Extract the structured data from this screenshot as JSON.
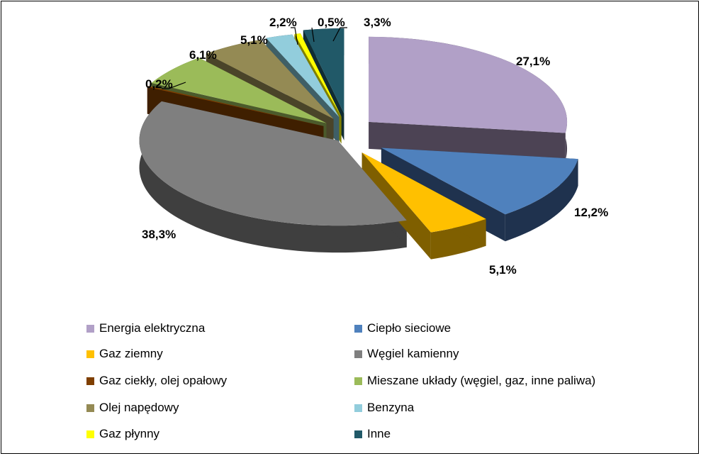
{
  "chart_data": {
    "type": "pie",
    "style": "3d-exploded",
    "title": "",
    "legend_placement": "bottom",
    "legend_columns": 2,
    "series": [
      {
        "name": "Energia elektryczna",
        "value": 27.1,
        "label": "27,1%",
        "color": "#B1A0C7",
        "side_color": "#4C4354"
      },
      {
        "name": "Ciepło sieciowe",
        "value": 12.2,
        "label": "12,2%",
        "color": "#4F81BD",
        "side_color": "#1F324E"
      },
      {
        "name": "Gaz ziemny",
        "value": 5.1,
        "label": "5,1%",
        "color": "#FFC000",
        "side_color": "#7F5F00"
      },
      {
        "name": "Węgiel kamienny",
        "value": 38.3,
        "label": "38,3%",
        "color": "#7F7F7F",
        "side_color": "#3F3F3F"
      },
      {
        "name": "Gaz ciekły, olej opałowy",
        "value": 0.2,
        "label": "0,2%",
        "color": "#7F3F00",
        "side_color": "#3F1F00"
      },
      {
        "name": "Mieszane układy (węgiel, gaz, inne paliwa)",
        "value": 6.1,
        "label": "6,1%",
        "color": "#9BBB59",
        "side_color": "#4B5A2B"
      },
      {
        "name": "Olej napędowy",
        "value": 5.1,
        "label": "5,1%",
        "color": "#948A54",
        "side_color": "#4A4429"
      },
      {
        "name": "Benzyna",
        "value": 2.2,
        "label": "2,2%",
        "color": "#92CDDC",
        "side_color": "#3F5F66"
      },
      {
        "name": "Gaz płynny",
        "value": 0.5,
        "label": "0,5%",
        "color": "#FFFF00",
        "side_color": "#7F7F00"
      },
      {
        "name": "Inne",
        "value": 3.3,
        "label": "3,3%",
        "color": "#215968",
        "side_color": "#102C33"
      }
    ]
  }
}
